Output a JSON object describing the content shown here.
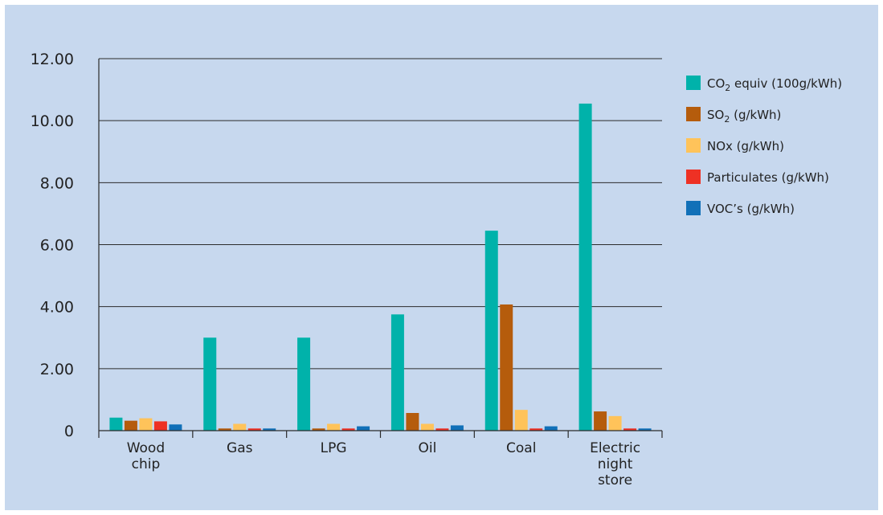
{
  "chart_data": {
    "type": "bar",
    "title": "",
    "xlabel": "",
    "ylabel": "",
    "ylim": [
      0,
      12
    ],
    "grid": true,
    "legend_position": "right",
    "y_ticks": [
      "0",
      "2.00",
      "4.00",
      "6.00",
      "8.00",
      "10.00",
      "12.00"
    ],
    "y_tick_values": [
      0,
      2,
      4,
      6,
      8,
      10,
      12
    ],
    "categories": [
      "Wood chip",
      "Gas",
      "LPG",
      "Oil",
      "Coal",
      "Electric night store"
    ],
    "category_lines": [
      [
        "Wood",
        "chip"
      ],
      [
        "Gas"
      ],
      [
        "LPG"
      ],
      [
        "Oil"
      ],
      [
        "Coal"
      ],
      [
        "Electric",
        "night",
        "store"
      ]
    ],
    "series": [
      {
        "name": "CO2 equiv (100g/kWh)",
        "legend_main": "CO",
        "legend_sub": "2",
        "legend_rest": " equiv (100g/kWh)",
        "color": "#00b2aa",
        "values": [
          0.42,
          3.0,
          3.0,
          3.75,
          6.45,
          10.55
        ]
      },
      {
        "name": "SO2 (g/kWh)",
        "legend_main": "SO",
        "legend_sub": "2",
        "legend_rest": " (g/kWh)",
        "color": "#b55c0c",
        "values": [
          0.32,
          0.07,
          0.07,
          0.57,
          4.07,
          0.62
        ]
      },
      {
        "name": "NOx (g/kWh)",
        "legend_main": "NOx (g/kWh)",
        "legend_sub": "",
        "legend_rest": "",
        "color": "#ffc35a",
        "values": [
          0.4,
          0.22,
          0.22,
          0.22,
          0.67,
          0.47
        ]
      },
      {
        "name": "Particulates (g/kWh)",
        "legend_main": "Particulates (g/kWh)",
        "legend_sub": "",
        "legend_rest": "",
        "color": "#ee3124",
        "values": [
          0.3,
          0.07,
          0.07,
          0.07,
          0.07,
          0.07
        ]
      },
      {
        "name": "VOC’s (g/kWh)",
        "legend_main": "VOC’s (g/kWh)",
        "legend_sub": "",
        "legend_rest": "",
        "color": "#1170b8",
        "values": [
          0.2,
          0.07,
          0.14,
          0.17,
          0.14,
          0.07
        ]
      }
    ]
  }
}
